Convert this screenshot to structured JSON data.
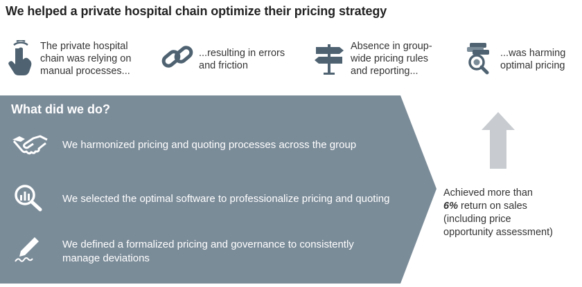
{
  "title": "We helped a private hospital chain optimize their pricing strategy",
  "problems": [
    {
      "icon": "touch-hand-icon",
      "text_lines": [
        "The private hospital",
        "chain was relying on",
        "manual processes..."
      ]
    },
    {
      "icon": "chain-link-icon",
      "text_lines": [
        "...resulting in errors",
        "and friction"
      ]
    },
    {
      "icon": "signpost-icon",
      "text_lines": [
        "Absence in group-",
        "wide pricing rules",
        "and reporting..."
      ]
    },
    {
      "icon": "magnifier-coins-icon",
      "text_lines": [
        "...was harming",
        "optimal pricing"
      ]
    }
  ],
  "actions": {
    "heading": "What did we do?",
    "items": [
      {
        "icon": "handshake-icon",
        "text_lines": [
          "We harmonized pricing and quoting processes across the group"
        ]
      },
      {
        "icon": "analytics-magnifier-icon",
        "text_lines": [
          "We selected the optimal software to professionalize pricing and quoting"
        ]
      },
      {
        "icon": "pen-signature-icon",
        "text_lines": [
          "We defined a formalized pricing and governance to consistently",
          "manage deviations"
        ]
      }
    ]
  },
  "result": {
    "line1": "Achieved more than",
    "highlight": "6%",
    "line2_rest": " return on sales",
    "line3": "(including price",
    "line4": "opportunity assessment)"
  },
  "colors": {
    "panel": "#7b8c99",
    "icon_dark": "#4e6271",
    "arrow": "#c8ccd0",
    "white": "#ffffff"
  }
}
